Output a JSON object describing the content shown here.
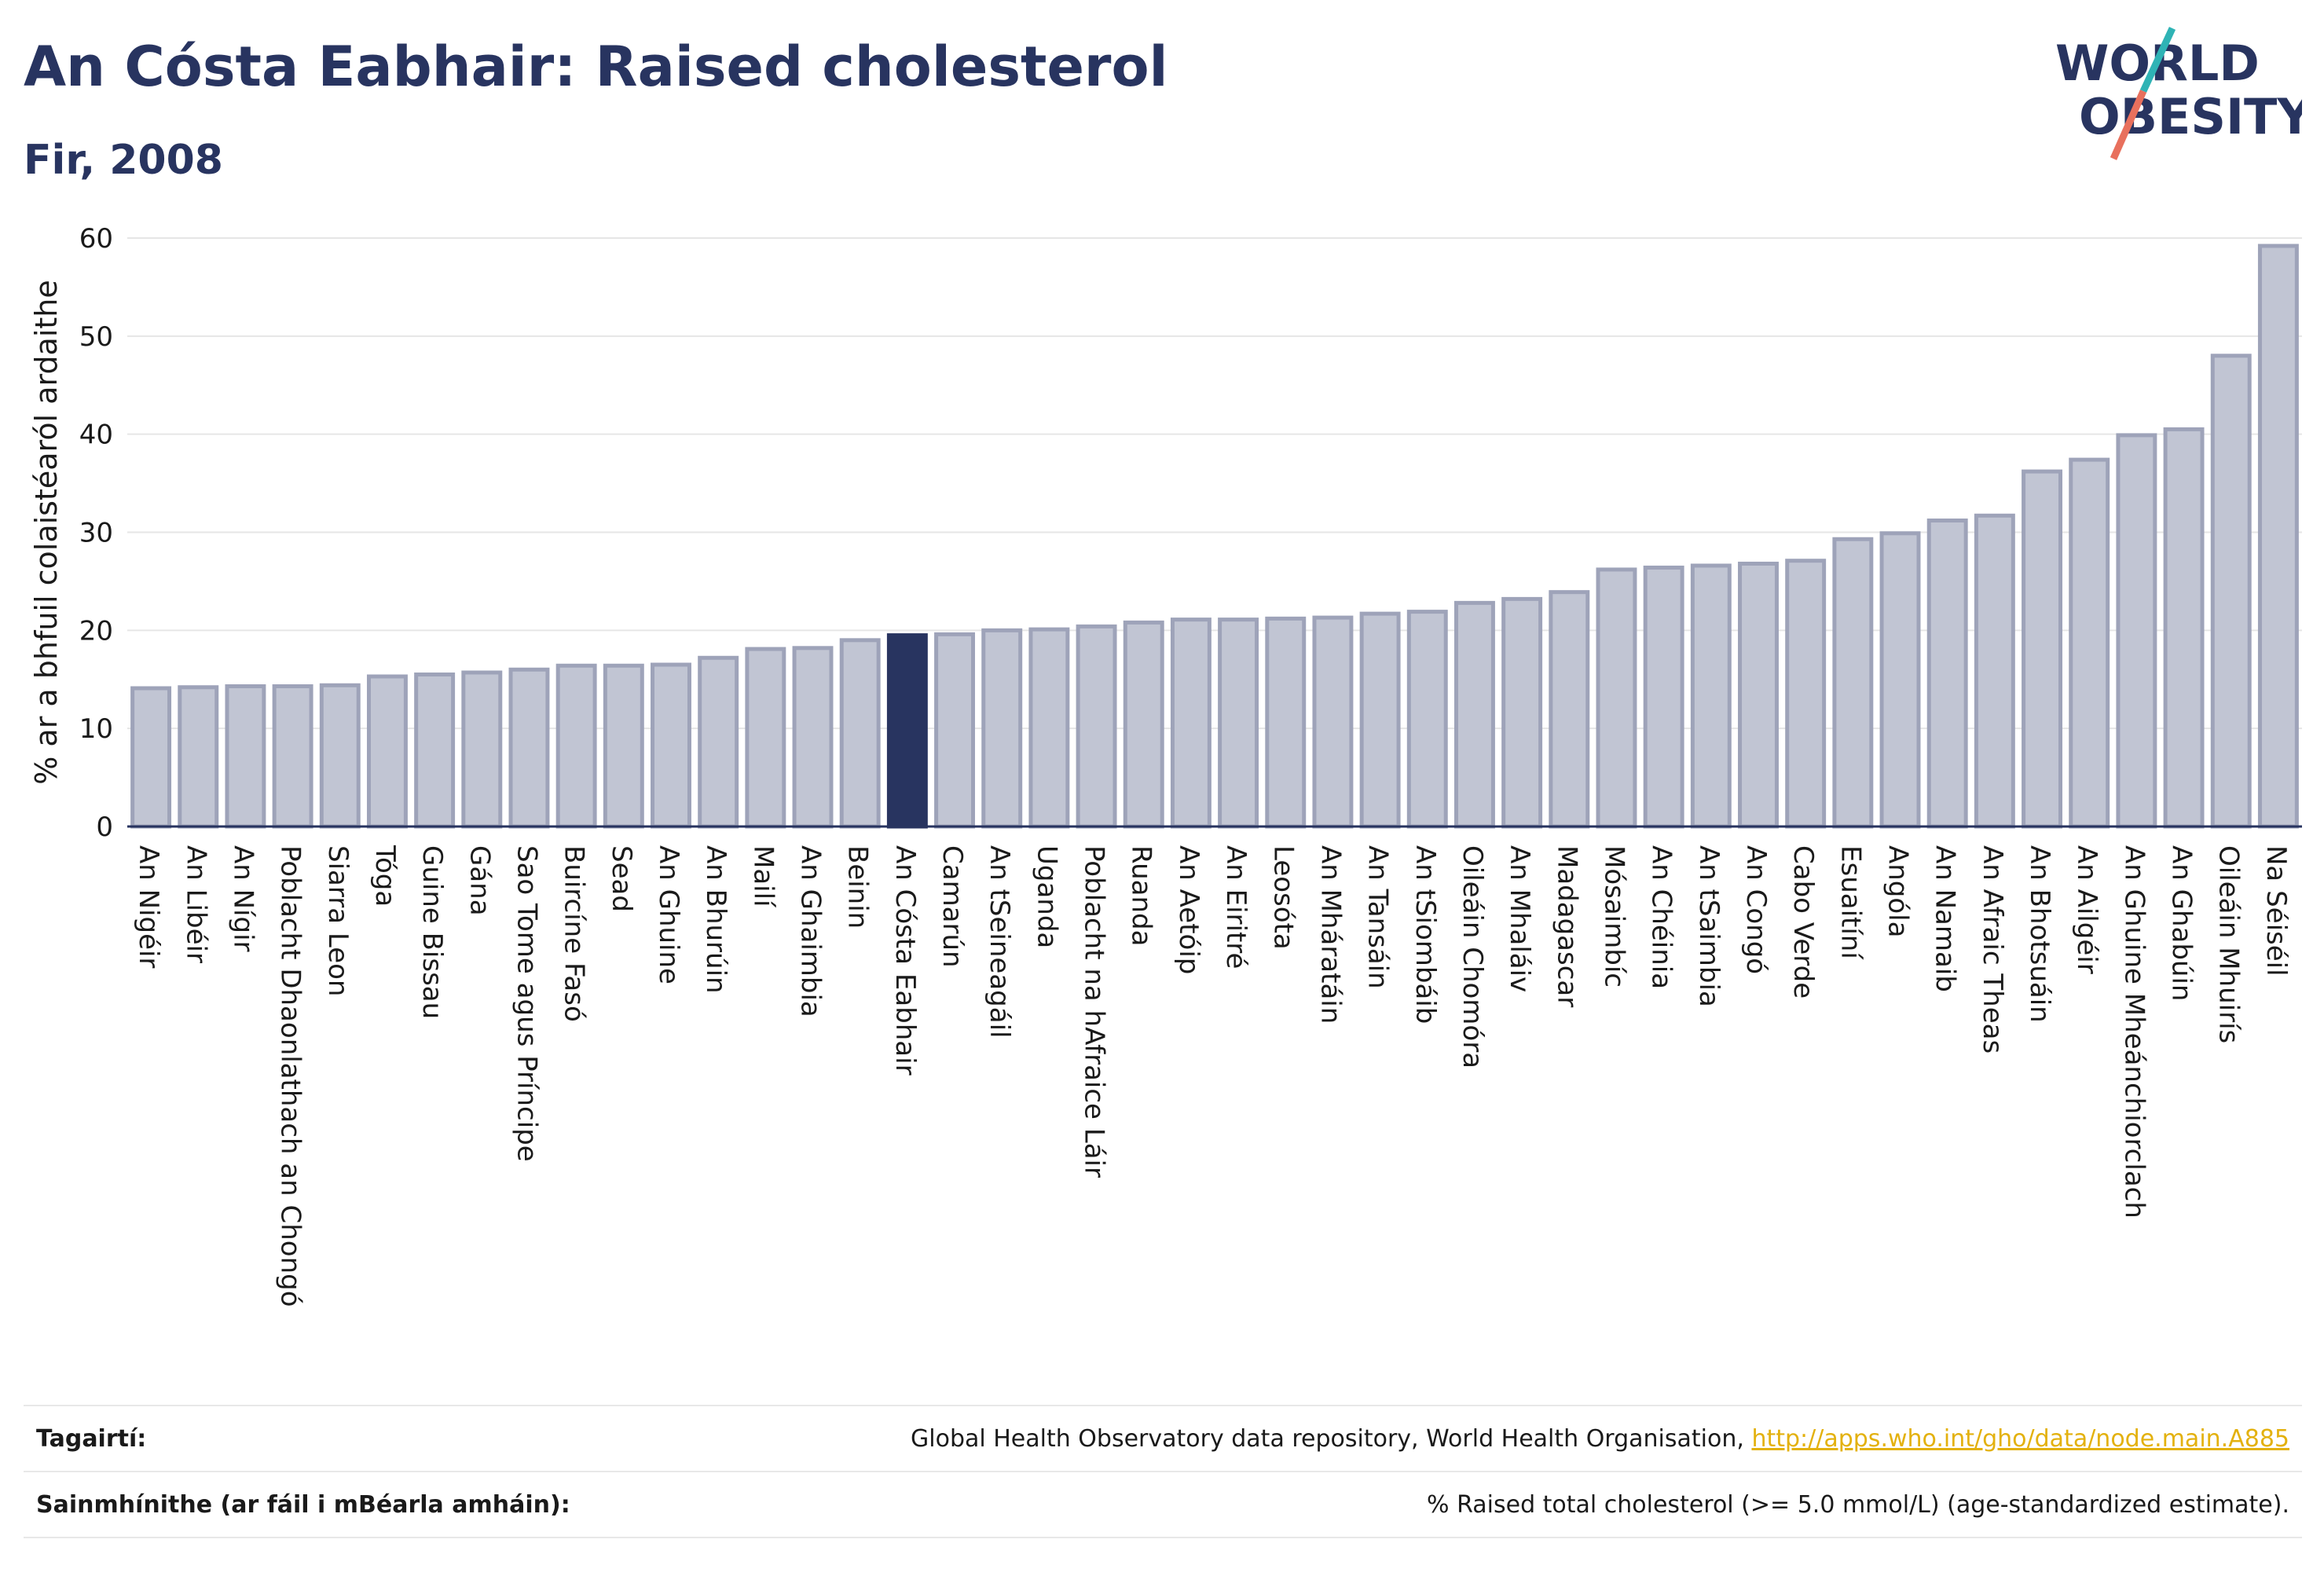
{
  "header": {
    "title": "An Cósta Eabhair: Raised cholesterol",
    "subtitle": "Fir, 2008"
  },
  "logo": {
    "line1": "WORLD",
    "line2": "OBESITY"
  },
  "colors": {
    "highlight": "#283460",
    "bar_fill": "#c1c5d3",
    "bar_stroke": "#9ea3b9",
    "grid": "#e6e6e6",
    "logo_teal": "#2fb3b5",
    "logo_coral": "#e8705d"
  },
  "chart_data": {
    "type": "bar",
    "ylabel": "% ar a bhfuil colaistéaról ardaithe",
    "xlabel": "",
    "ylim": [
      0,
      60
    ],
    "yticks": [
      0,
      10,
      20,
      30,
      40,
      50,
      60
    ],
    "highlight": "An Cósta Eabhair",
    "categories": [
      "An Nigéir",
      "An Libéir",
      "An Nígir",
      "Poblacht Dhaonlathach an Chongó",
      "Siarra Leon",
      "Tóga",
      "Guine Bissau",
      "Gána",
      "Sao Tome agus Príncipe",
      "Buircíne Fasó",
      "Sead",
      "An Ghuine",
      "An Bhurúin",
      "Mailí",
      "An Ghaimbia",
      "Beinin",
      "An Cósta Eabhair",
      "Camarún",
      "An tSeineagáil",
      "Uganda",
      "Poblacht na hAfraice Láir",
      "Ruanda",
      "An Aetóip",
      "An Eiritré",
      "Leosóta",
      "An Mháratáin",
      "An Tansáin",
      "An tSiombáib",
      "Oileáin Chomóra",
      "An Mhaláiv",
      "Madagascar",
      "Mósaimbíc",
      "An Chéinia",
      "An tSaimbia",
      "An Congó",
      "Cabo Verde",
      "Esuaitíní",
      "Angóla",
      "An Namaib",
      "An Afraic Theas",
      "An Bhotsuáin",
      "An Ailgéir",
      "An Ghuine Mheánchiorclach",
      "An Ghabúin",
      "Oileáin Mhuirís",
      "Na Séiséil"
    ],
    "values": [
      14.1,
      14.2,
      14.3,
      14.3,
      14.4,
      15.3,
      15.5,
      15.7,
      16.0,
      16.4,
      16.4,
      16.5,
      17.2,
      18.1,
      18.2,
      19.0,
      19.5,
      19.6,
      20.0,
      20.1,
      20.4,
      20.8,
      21.1,
      21.1,
      21.2,
      21.3,
      21.7,
      21.9,
      22.8,
      23.2,
      23.9,
      26.2,
      26.4,
      26.6,
      26.8,
      27.1,
      29.3,
      29.9,
      31.2,
      31.7,
      36.2,
      37.4,
      39.9,
      40.5,
      48.0,
      59.2
    ]
  },
  "footer": {
    "references_label": "Tagairtí:",
    "references_text": "Global Health Observatory data repository, World Health Organisation, ",
    "references_link": "http://apps.who.int/gho/data/node.main.A885",
    "definitions_label": "Sainmhínithe (ar fáil i mBéarla amháin):",
    "definitions_text": "% Raised total cholesterol (>= 5.0 mmol/L) (age-standardized estimate)."
  }
}
